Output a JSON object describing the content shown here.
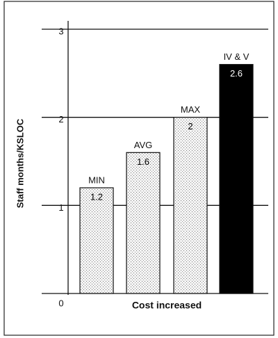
{
  "chart_data": {
    "type": "bar",
    "categories": [
      "MIN",
      "AVG",
      "MAX",
      "IV & V"
    ],
    "values": [
      1.2,
      1.6,
      2,
      2.6
    ],
    "colors": [
      "#d9d9d9",
      "#d9d9d9",
      "#d9d9d9",
      "#000000"
    ],
    "value_label_colors": [
      "#000000",
      "#000000",
      "#000000",
      "#ffffff"
    ],
    "x_label": "Cost increased",
    "y_label": "Staff months/KSLOC",
    "ylim": [
      0,
      3
    ],
    "yticks": [
      0,
      1,
      2,
      3
    ],
    "grid": true
  }
}
